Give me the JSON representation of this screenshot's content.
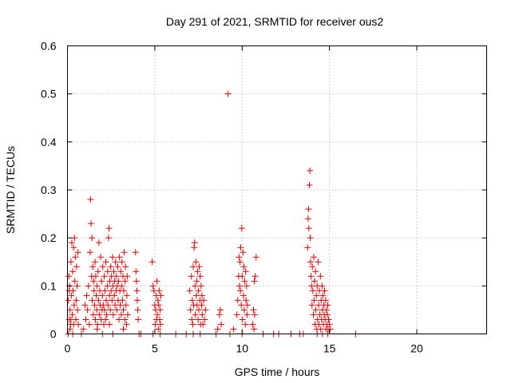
{
  "chart_data": {
    "type": "scatter",
    "title": "Day 291 of 2021, SRMTID for receiver ous2",
    "xlabel": "GPS time / hours",
    "ylabel": "SRMTID / TECUs",
    "xlim": [
      0,
      24
    ],
    "ylim": [
      0,
      0.6
    ],
    "xticks": [
      0,
      5,
      10,
      15,
      20
    ],
    "yticks": [
      0,
      0.1,
      0.2,
      0.3,
      0.4,
      0.5,
      0.6
    ],
    "xtick_labels": [
      "0",
      "5",
      "10",
      "15",
      "20"
    ],
    "ytick_labels": [
      "0",
      "0.1",
      "0.2",
      "0.3",
      "0.4",
      "0.5",
      "0.6"
    ],
    "grid": true,
    "marker": "plus",
    "color": "#e00000",
    "series": [
      {
        "points": [
          [
            0.05,
            0.07
          ],
          [
            0.08,
            0.12
          ],
          [
            0.1,
            0.03
          ],
          [
            0.12,
            0.1
          ],
          [
            0.15,
            0.05
          ],
          [
            0.18,
            0.02
          ],
          [
            0.2,
            0.15
          ],
          [
            0.22,
            0.08
          ],
          [
            0.25,
            0.19
          ],
          [
            0.28,
            0.04
          ],
          [
            0.3,
            0.13
          ],
          [
            0.32,
            0.09
          ],
          [
            0.35,
            0.18
          ],
          [
            0.38,
            0.06
          ],
          [
            0.4,
            0.2
          ],
          [
            0.42,
            0.11
          ],
          [
            0.45,
            0.16
          ],
          [
            0.48,
            0.03
          ],
          [
            0.5,
            0.07
          ],
          [
            0.52,
            0.14
          ],
          [
            0.55,
            0.1
          ],
          [
            0.58,
            0.05
          ],
          [
            0.6,
            0.17
          ],
          [
            0.62,
            0.02
          ],
          [
            0.15,
            0.01
          ],
          [
            0.3,
            0.0
          ],
          [
            0.05,
            0.0
          ],
          [
            0.2,
            0.03
          ],
          [
            0.35,
            0.02
          ],
          [
            0.1,
            0.09
          ],
          [
            0.8,
            0.0
          ],
          [
            0.9,
            0.01
          ],
          [
            1.0,
            0.06
          ],
          [
            1.05,
            0.03
          ],
          [
            1.1,
            0.08
          ],
          [
            1.15,
            0.05
          ],
          [
            1.2,
            0.1
          ],
          [
            1.25,
            0.02
          ],
          [
            1.3,
            0.17
          ],
          [
            1.32,
            0.28
          ],
          [
            1.35,
            0.23
          ],
          [
            1.38,
            0.12
          ],
          [
            1.4,
            0.2
          ],
          [
            1.42,
            0.07
          ],
          [
            1.45,
            0.14
          ],
          [
            1.48,
            0.04
          ],
          [
            1.5,
            0.11
          ],
          [
            1.52,
            0.09
          ],
          [
            1.55,
            0.06
          ],
          [
            1.58,
            0.15
          ],
          [
            1.6,
            0.03
          ],
          [
            1.62,
            0.12
          ],
          [
            1.65,
            0.08
          ],
          [
            1.68,
            0.05
          ],
          [
            1.7,
            0.1
          ],
          [
            1.72,
            0.02
          ],
          [
            1.75,
            0.13
          ],
          [
            1.78,
            0.07
          ],
          [
            1.8,
            0.19
          ],
          [
            1.82,
            0.04
          ],
          [
            1.85,
            0.09
          ],
          [
            1.88,
            0.06
          ],
          [
            1.9,
            0.16
          ],
          [
            1.92,
            0.03
          ],
          [
            1.95,
            0.11
          ],
          [
            1.98,
            0.05
          ],
          [
            2.0,
            0.08
          ],
          [
            2.02,
            0.14
          ],
          [
            2.05,
            0.06
          ],
          [
            2.08,
            0.02
          ],
          [
            2.1,
            0.12
          ],
          [
            2.12,
            0.05
          ],
          [
            2.15,
            0.09
          ],
          [
            2.18,
            0.03
          ],
          [
            2.2,
            0.15
          ],
          [
            2.22,
            0.07
          ],
          [
            2.25,
            0.04
          ],
          [
            2.28,
            0.1
          ],
          [
            2.3,
            0.13
          ],
          [
            2.32,
            0.06
          ],
          [
            2.35,
            0.2
          ],
          [
            2.38,
            0.22
          ],
          [
            2.4,
            0.08
          ],
          [
            2.42,
            0.11
          ],
          [
            2.45,
            0.05
          ],
          [
            2.48,
            0.14
          ],
          [
            2.5,
            0.09
          ],
          [
            2.52,
            0.12
          ],
          [
            2.55,
            0.07
          ],
          [
            2.58,
            0.16
          ],
          [
            2.6,
            0.1
          ],
          [
            2.62,
            0.04
          ],
          [
            2.65,
            0.13
          ],
          [
            2.68,
            0.08
          ],
          [
            2.7,
            0.11
          ],
          [
            2.72,
            0.06
          ],
          [
            2.75,
            0.15
          ],
          [
            2.78,
            0.09
          ],
          [
            2.8,
            0.12
          ],
          [
            2.82,
            0.05
          ],
          [
            2.85,
            0.1
          ],
          [
            2.88,
            0.14
          ],
          [
            2.9,
            0.07
          ],
          [
            2.92,
            0.11
          ],
          [
            2.95,
            0.03
          ],
          [
            2.98,
            0.16
          ],
          [
            3.0,
            0.09
          ],
          [
            3.02,
            0.06
          ],
          [
            3.05,
            0.13
          ],
          [
            3.08,
            0.04
          ],
          [
            3.1,
            0.1
          ],
          [
            3.12,
            0.15
          ],
          [
            3.15,
            0.07
          ],
          [
            3.18,
            0.12
          ],
          [
            3.2,
            0.05
          ],
          [
            3.22,
            0.09
          ],
          [
            3.25,
            0.17
          ],
          [
            3.28,
            0.03
          ],
          [
            3.3,
            0.11
          ],
          [
            3.32,
            0.14
          ],
          [
            3.35,
            0.06
          ],
          [
            3.38,
            0.02
          ],
          [
            3.4,
            0.08
          ],
          [
            3.42,
            0.12
          ],
          [
            3.45,
            0.04
          ],
          [
            2.6,
            0.0
          ],
          [
            3.2,
            0.01
          ],
          [
            2.0,
            0.0
          ],
          [
            1.7,
            0.01
          ],
          [
            2.4,
            0.02
          ],
          [
            3.9,
            0.17
          ],
          [
            3.92,
            0.13
          ],
          [
            3.95,
            0.11
          ],
          [
            3.98,
            0.09
          ],
          [
            4.0,
            0.07
          ],
          [
            4.02,
            0.05
          ],
          [
            4.05,
            0.03
          ],
          [
            4.1,
            0.0
          ],
          [
            4.2,
            0.0
          ],
          [
            4.85,
            0.15
          ],
          [
            4.9,
            0.1
          ],
          [
            4.95,
            0.09
          ],
          [
            5.0,
            0.06
          ],
          [
            5.02,
            0.02
          ],
          [
            5.05,
            0.05
          ],
          [
            5.08,
            0.08
          ],
          [
            5.1,
            0.03
          ],
          [
            5.12,
            0.11
          ],
          [
            5.15,
            0.04
          ],
          [
            5.18,
            0.07
          ],
          [
            5.2,
            0.01
          ],
          [
            5.22,
            0.06
          ],
          [
            5.25,
            0.09
          ],
          [
            5.28,
            0.03
          ],
          [
            5.3,
            0.05
          ],
          [
            5.32,
            0.02
          ],
          [
            5.35,
            0.08
          ],
          [
            4.9,
            0.0
          ],
          [
            5.3,
            0.0
          ],
          [
            6.2,
            0.0
          ],
          [
            6.8,
            0.0
          ],
          [
            7.0,
            0.09
          ],
          [
            7.05,
            0.05
          ],
          [
            7.1,
            0.12
          ],
          [
            7.12,
            0.03
          ],
          [
            7.15,
            0.07
          ],
          [
            7.18,
            0.02
          ],
          [
            7.2,
            0.14
          ],
          [
            7.22,
            0.06
          ],
          [
            7.25,
            0.18
          ],
          [
            7.28,
            0.19
          ],
          [
            7.3,
            0.1
          ],
          [
            7.32,
            0.04
          ],
          [
            7.35,
            0.15
          ],
          [
            7.38,
            0.08
          ],
          [
            7.4,
            0.11
          ],
          [
            7.42,
            0.06
          ],
          [
            7.45,
            0.13
          ],
          [
            7.48,
            0.03
          ],
          [
            7.5,
            0.09
          ],
          [
            7.52,
            0.05
          ],
          [
            7.55,
            0.14
          ],
          [
            7.58,
            0.07
          ],
          [
            7.6,
            0.12
          ],
          [
            7.62,
            0.02
          ],
          [
            7.65,
            0.1
          ],
          [
            7.68,
            0.06
          ],
          [
            7.7,
            0.08
          ],
          [
            7.72,
            0.04
          ],
          [
            7.75,
            0.02
          ],
          [
            7.8,
            0.07
          ],
          [
            7.85,
            0.03
          ],
          [
            7.9,
            0.05
          ],
          [
            7.6,
            0.0
          ],
          [
            7.2,
            0.0
          ],
          [
            8.5,
            0.0
          ],
          [
            8.6,
            0.01
          ],
          [
            8.7,
            0.04
          ],
          [
            8.75,
            0.05
          ],
          [
            8.8,
            0.02
          ],
          [
            9.2,
            0.5
          ],
          [
            9.3,
            0.0
          ],
          [
            9.5,
            0.01
          ],
          [
            9.7,
            0.04
          ],
          [
            9.75,
            0.07
          ],
          [
            9.8,
            0.12
          ],
          [
            9.82,
            0.16
          ],
          [
            9.85,
            0.1
          ],
          [
            9.88,
            0.15
          ],
          [
            9.9,
            0.09
          ],
          [
            9.92,
            0.18
          ],
          [
            9.95,
            0.06
          ],
          [
            9.98,
            0.22
          ],
          [
            10.0,
            0.12
          ],
          [
            10.02,
            0.03
          ],
          [
            10.05,
            0.17
          ],
          [
            10.08,
            0.08
          ],
          [
            10.1,
            0.14
          ],
          [
            10.12,
            0.05
          ],
          [
            10.15,
            0.11
          ],
          [
            10.18,
            0.02
          ],
          [
            10.2,
            0.13
          ],
          [
            10.22,
            0.07
          ],
          [
            10.25,
            0.1
          ],
          [
            10.28,
            0.04
          ],
          [
            10.3,
            0.06
          ],
          [
            10.0,
            0.0
          ],
          [
            10.6,
            0.02
          ],
          [
            10.65,
            0.05
          ],
          [
            10.7,
            0.11
          ],
          [
            10.75,
            0.12
          ],
          [
            10.8,
            0.16
          ],
          [
            10.72,
            0.04
          ],
          [
            10.68,
            0.01
          ],
          [
            11.2,
            0.0
          ],
          [
            11.8,
            0.0
          ],
          [
            12.1,
            0.0
          ],
          [
            12.8,
            0.0
          ],
          [
            13.3,
            0.0
          ],
          [
            13.5,
            0.0
          ],
          [
            13.75,
            0.18
          ],
          [
            13.78,
            0.24
          ],
          [
            13.8,
            0.26
          ],
          [
            13.82,
            0.22
          ],
          [
            13.85,
            0.31
          ],
          [
            13.88,
            0.34
          ],
          [
            13.9,
            0.2
          ],
          [
            13.92,
            0.15
          ],
          [
            13.95,
            0.12
          ],
          [
            13.98,
            0.1
          ],
          [
            14.0,
            0.06
          ],
          [
            14.02,
            0.14
          ],
          [
            14.05,
            0.09
          ],
          [
            14.08,
            0.04
          ],
          [
            14.1,
            0.16
          ],
          [
            14.12,
            0.07
          ],
          [
            14.15,
            0.11
          ],
          [
            14.18,
            0.02
          ],
          [
            14.2,
            0.13
          ],
          [
            14.22,
            0.05
          ],
          [
            14.25,
            0.08
          ],
          [
            14.28,
            0.01
          ],
          [
            14.3,
            0.1
          ],
          [
            14.32,
            0.03
          ],
          [
            14.35,
            0.15
          ],
          [
            14.38,
            0.06
          ],
          [
            14.4,
            0.02
          ],
          [
            14.42,
            0.09
          ],
          [
            14.45,
            0.04
          ],
          [
            14.48,
            0.12
          ],
          [
            14.5,
            0.01
          ],
          [
            14.52,
            0.07
          ],
          [
            14.55,
            0.03
          ],
          [
            14.58,
            0.1
          ],
          [
            14.6,
            0.05
          ],
          [
            14.62,
            0.08
          ],
          [
            14.65,
            0.02
          ],
          [
            14.68,
            0.06
          ],
          [
            14.7,
            0.04
          ],
          [
            14.72,
            0.09
          ],
          [
            14.75,
            0.03
          ],
          [
            14.78,
            0.07
          ],
          [
            14.8,
            0.01
          ],
          [
            14.82,
            0.05
          ],
          [
            14.85,
            0.02
          ],
          [
            14.88,
            0.04
          ],
          [
            14.9,
            0.06
          ],
          [
            14.92,
            0.01
          ],
          [
            14.95,
            0.03
          ],
          [
            15.0,
            0.02
          ],
          [
            15.05,
            0.01
          ],
          [
            14.3,
            0.0
          ],
          [
            14.6,
            0.0
          ],
          [
            14.9,
            0.0
          ],
          [
            16.5,
            0.0
          ]
        ]
      }
    ]
  }
}
